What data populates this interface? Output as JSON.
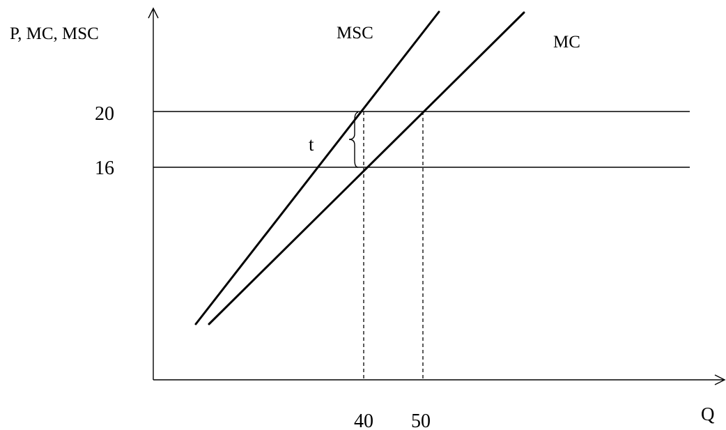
{
  "axes": {
    "y_label": "P, MC, MSC",
    "x_label": "Q"
  },
  "curves": {
    "msc_label": "MSC",
    "mc_label": "MC"
  },
  "price_levels": {
    "high": "20",
    "low": "16"
  },
  "quantities": {
    "q1": "40",
    "q2": "50"
  },
  "tax_label": "t"
}
